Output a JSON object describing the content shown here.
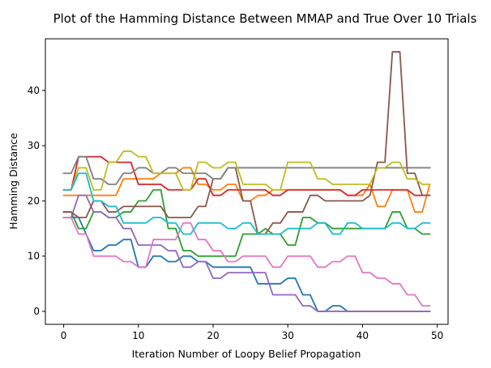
{
  "chart_data": {
    "type": "line",
    "title": "Plot of the Hamming Distance Between MMAP and True Over 10 Trials",
    "xlabel": "Iteration Number of Loopy Belief Propagation",
    "ylabel": "Hamming Distance",
    "xlim": [
      -2.45,
      51.45
    ],
    "ylim": [
      -2.35,
      49.35
    ],
    "xticks": [
      0,
      10,
      20,
      30,
      40,
      50
    ],
    "yticks": [
      0,
      10,
      20,
      30,
      40
    ],
    "grid": false,
    "x": [
      0,
      1,
      2,
      3,
      4,
      5,
      6,
      7,
      8,
      9,
      10,
      11,
      12,
      13,
      14,
      15,
      16,
      17,
      18,
      19,
      20,
      21,
      22,
      23,
      24,
      25,
      26,
      27,
      28,
      29,
      30,
      31,
      32,
      33,
      34,
      35,
      36,
      37,
      38,
      39,
      40,
      41,
      42,
      43,
      44,
      45,
      46,
      47,
      48,
      49
    ],
    "series": [
      {
        "color": "#1f77b4",
        "values": [
          17,
          17,
          17,
          14,
          11,
          11,
          12,
          12,
          13,
          13,
          8,
          8,
          10,
          10,
          9,
          9,
          10,
          10,
          9,
          9,
          8,
          8,
          8,
          8,
          8,
          8,
          5,
          5,
          5,
          5,
          6,
          6,
          3,
          3,
          0,
          0,
          1,
          1,
          0,
          0,
          0,
          0,
          0,
          0,
          0,
          0,
          0,
          0,
          0,
          0
        ]
      },
      {
        "color": "#ff7f0e",
        "values": [
          21,
          21,
          21,
          21,
          21,
          21,
          21,
          21,
          24,
          24,
          24,
          24,
          24,
          25,
          25,
          25,
          26,
          26,
          23,
          23,
          22,
          22,
          23,
          23,
          20,
          20,
          21,
          21,
          22,
          22,
          22,
          22,
          22,
          22,
          22,
          22,
          22,
          22,
          21,
          21,
          21,
          23,
          19,
          19,
          22,
          22,
          22,
          18,
          18,
          23
        ]
      },
      {
        "color": "#2ca02c",
        "values": [
          18,
          18,
          15,
          15,
          18,
          18,
          17,
          17,
          18,
          18,
          20,
          20,
          22,
          22,
          15,
          15,
          11,
          11,
          10,
          10,
          10,
          10,
          10,
          10,
          14,
          14,
          14,
          15,
          14,
          14,
          12,
          12,
          17,
          17,
          16,
          16,
          15,
          15,
          15,
          15,
          15,
          15,
          15,
          15,
          18,
          18,
          15,
          15,
          14,
          14
        ]
      },
      {
        "color": "#d62728",
        "values": [
          22,
          22,
          28,
          28,
          28,
          28,
          27,
          27,
          27,
          27,
          23,
          23,
          23,
          23,
          22,
          22,
          22,
          22,
          24,
          24,
          21,
          21,
          22,
          22,
          22,
          22,
          22,
          22,
          21,
          21,
          22,
          22,
          22,
          22,
          22,
          22,
          22,
          22,
          21,
          21,
          22,
          22,
          22,
          22,
          22,
          22,
          22,
          21,
          21,
          21
        ]
      },
      {
        "color": "#9467bd",
        "values": [
          17,
          17,
          21,
          21,
          18,
          18,
          17,
          17,
          15,
          15,
          12,
          12,
          12,
          12,
          11,
          11,
          8,
          8,
          9,
          9,
          6,
          6,
          7,
          7,
          7,
          7,
          7,
          7,
          3,
          3,
          3,
          3,
          1,
          1,
          0,
          0,
          0,
          0,
          0,
          0,
          0,
          0,
          0,
          0,
          0,
          0,
          0,
          0,
          0,
          0
        ]
      },
      {
        "color": "#8c564b",
        "values": [
          18,
          18,
          17,
          17,
          20,
          20,
          18,
          18,
          19,
          19,
          19,
          19,
          19,
          19,
          17,
          17,
          17,
          17,
          19,
          19,
          24,
          24,
          26,
          26,
          20,
          20,
          14,
          14,
          16,
          16,
          18,
          18,
          18,
          21,
          21,
          20,
          20,
          20,
          20,
          20,
          20,
          21,
          27,
          27,
          47,
          47,
          25,
          25,
          21,
          21
        ]
      },
      {
        "color": "#e377c2",
        "values": [
          17,
          17,
          14,
          14,
          10,
          10,
          10,
          10,
          9,
          9,
          8,
          8,
          13,
          13,
          13,
          13,
          16,
          16,
          13,
          13,
          11,
          11,
          9,
          9,
          10,
          10,
          10,
          10,
          8,
          8,
          10,
          10,
          10,
          10,
          8,
          8,
          9,
          9,
          10,
          10,
          7,
          7,
          6,
          6,
          5,
          5,
          3,
          3,
          1,
          1
        ]
      },
      {
        "color": "#7f7f7f",
        "values": [
          25,
          25,
          28,
          28,
          24,
          24,
          23,
          23,
          25,
          25,
          26,
          26,
          25,
          25,
          26,
          26,
          25,
          25,
          25,
          25,
          24,
          24,
          26,
          26,
          26,
          26,
          26,
          26,
          26,
          26,
          26,
          26,
          26,
          26,
          26,
          26,
          26,
          26,
          26,
          26,
          26,
          26,
          26,
          26,
          26,
          26,
          26,
          26,
          26,
          26
        ]
      },
      {
        "color": "#bcbd22",
        "values": [
          22,
          22,
          26,
          26,
          22,
          22,
          27,
          27,
          29,
          29,
          28,
          28,
          25,
          25,
          25,
          25,
          22,
          22,
          27,
          27,
          26,
          26,
          27,
          27,
          23,
          23,
          23,
          23,
          22,
          22,
          27,
          27,
          27,
          27,
          24,
          24,
          23,
          23,
          23,
          23,
          23,
          23,
          26,
          26,
          27,
          27,
          24,
          24,
          23,
          23
        ]
      },
      {
        "color": "#17becf",
        "values": [
          22,
          22,
          25,
          25,
          20,
          20,
          19,
          19,
          16,
          16,
          16,
          16,
          17,
          17,
          16,
          16,
          14,
          14,
          16,
          16,
          16,
          16,
          15,
          15,
          16,
          16,
          14,
          14,
          14,
          14,
          15,
          15,
          15,
          15,
          16,
          16,
          14,
          14,
          16,
          16,
          15,
          15,
          15,
          15,
          16,
          16,
          15,
          15,
          16,
          16
        ]
      }
    ]
  }
}
